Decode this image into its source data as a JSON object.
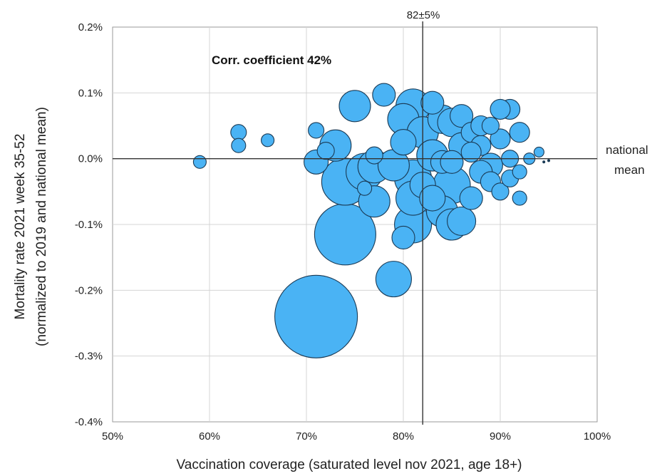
{
  "chart_data": {
    "type": "scatter",
    "xlabel": "Vaccination coverage (saturated level nov 2021, age 18+)",
    "ylabel_line1": "Mortality rate 2021 week 35-52",
    "ylabel_line2": "(normalized to 2019 and national mean)",
    "xlim": [
      50,
      100
    ],
    "ylim": [
      -0.4,
      0.2
    ],
    "x_ticks": [
      "50%",
      "60%",
      "70%",
      "80%",
      "90%",
      "100%"
    ],
    "y_ticks": [
      "0.2%",
      "0.1%",
      "0.0%",
      "-0.1%",
      "-0.2%",
      "-0.3%",
      "-0.4%"
    ],
    "grid": true,
    "annotations": {
      "correlation": "Corr. coefficient 42%",
      "vline_label": "82±5%",
      "vline_x": 82,
      "hline_label_line1": "national",
      "hline_label_line2": "mean",
      "hline_y": 0.0
    },
    "bubble_color": "#4AB3F4",
    "points": [
      {
        "x": 71,
        "y": -0.24,
        "s": 58
      },
      {
        "x": 74,
        "y": -0.115,
        "s": 43
      },
      {
        "x": 79,
        "y": -0.183,
        "s": 25
      },
      {
        "x": 74,
        "y": -0.035,
        "s": 33
      },
      {
        "x": 75,
        "y": 0.08,
        "s": 22
      },
      {
        "x": 73,
        "y": 0.02,
        "s": 22
      },
      {
        "x": 76,
        "y": -0.02,
        "s": 26
      },
      {
        "x": 77,
        "y": -0.012,
        "s": 23
      },
      {
        "x": 77,
        "y": -0.065,
        "s": 22
      },
      {
        "x": 79,
        "y": -0.01,
        "s": 22
      },
      {
        "x": 80,
        "y": 0.06,
        "s": 22
      },
      {
        "x": 81,
        "y": 0.08,
        "s": 24
      },
      {
        "x": 81,
        "y": -0.03,
        "s": 26
      },
      {
        "x": 81,
        "y": -0.1,
        "s": 26
      },
      {
        "x": 81,
        "y": -0.06,
        "s": 24
      },
      {
        "x": 82,
        "y": 0.04,
        "s": 22
      },
      {
        "x": 83,
        "y": 0.005,
        "s": 22
      },
      {
        "x": 84,
        "y": 0.06,
        "s": 20
      },
      {
        "x": 84,
        "y": -0.08,
        "s": 22
      },
      {
        "x": 85,
        "y": -0.04,
        "s": 26
      },
      {
        "x": 85,
        "y": 0.055,
        "s": 20
      },
      {
        "x": 85,
        "y": -0.1,
        "s": 22
      },
      {
        "x": 86,
        "y": -0.095,
        "s": 20
      },
      {
        "x": 86,
        "y": 0.02,
        "s": 18
      },
      {
        "x": 87,
        "y": -0.06,
        "s": 16
      },
      {
        "x": 87,
        "y": 0.04,
        "s": 14
      },
      {
        "x": 88,
        "y": -0.02,
        "s": 16
      },
      {
        "x": 88,
        "y": 0.02,
        "s": 14
      },
      {
        "x": 89,
        "y": -0.01,
        "s": 17
      },
      {
        "x": 89,
        "y": 0.05,
        "s": 12
      },
      {
        "x": 90,
        "y": 0.03,
        "s": 14
      },
      {
        "x": 90,
        "y": -0.05,
        "s": 12
      },
      {
        "x": 91,
        "y": 0.075,
        "s": 14
      },
      {
        "x": 91,
        "y": 0.0,
        "s": 12
      },
      {
        "x": 92,
        "y": 0.04,
        "s": 14
      },
      {
        "x": 92,
        "y": -0.06,
        "s": 10
      },
      {
        "x": 93,
        "y": 0.0,
        "s": 8
      },
      {
        "x": 94,
        "y": 0.01,
        "s": 7
      },
      {
        "x": 78,
        "y": 0.097,
        "s": 16
      },
      {
        "x": 80,
        "y": 0.025,
        "s": 18
      },
      {
        "x": 83,
        "y": 0.085,
        "s": 16
      },
      {
        "x": 84,
        "y": -0.005,
        "s": 16
      },
      {
        "x": 76,
        "y": -0.045,
        "s": 10
      },
      {
        "x": 77,
        "y": 0.005,
        "s": 12
      },
      {
        "x": 82,
        "y": -0.04,
        "s": 18
      },
      {
        "x": 86,
        "y": 0.065,
        "s": 16
      },
      {
        "x": 88,
        "y": 0.05,
        "s": 14
      },
      {
        "x": 90,
        "y": 0.075,
        "s": 14
      },
      {
        "x": 91,
        "y": -0.03,
        "s": 12
      },
      {
        "x": 92,
        "y": -0.02,
        "s": 10
      },
      {
        "x": 89,
        "y": -0.035,
        "s": 14
      },
      {
        "x": 87,
        "y": 0.01,
        "s": 14
      },
      {
        "x": 83,
        "y": -0.06,
        "s": 18
      },
      {
        "x": 80,
        "y": -0.12,
        "s": 16
      },
      {
        "x": 85,
        "y": -0.005,
        "s": 16
      },
      {
        "x": 72,
        "y": 0.012,
        "s": 12
      },
      {
        "x": 71,
        "y": -0.005,
        "s": 17
      },
      {
        "x": 71,
        "y": 0.043,
        "s": 11
      },
      {
        "x": 66,
        "y": 0.028,
        "s": 9
      },
      {
        "x": 63,
        "y": 0.04,
        "s": 11
      },
      {
        "x": 63,
        "y": 0.02,
        "s": 10
      },
      {
        "x": 59,
        "y": -0.005,
        "s": 9
      }
    ],
    "dots": [
      {
        "x": 94.5,
        "y": -0.005
      },
      {
        "x": 95,
        "y": -0.003
      }
    ]
  }
}
